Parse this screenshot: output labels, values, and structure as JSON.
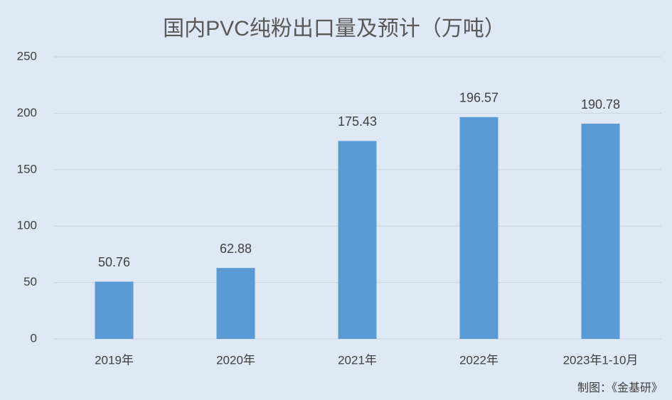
{
  "chart_data": {
    "type": "bar",
    "title": "国内PVC纯粉出口量及预计（万吨）",
    "categories": [
      "2019年",
      "2020年",
      "2021年",
      "2022年",
      "2023年1-10月"
    ],
    "values": [
      50.76,
      62.88,
      175.43,
      196.57,
      190.78
    ],
    "color": "#5b9bd5",
    "ylim": [
      0,
      250
    ],
    "yticks": [
      0,
      50,
      100,
      150,
      200,
      250
    ],
    "grid": true,
    "source": "制图：《金基研》"
  }
}
